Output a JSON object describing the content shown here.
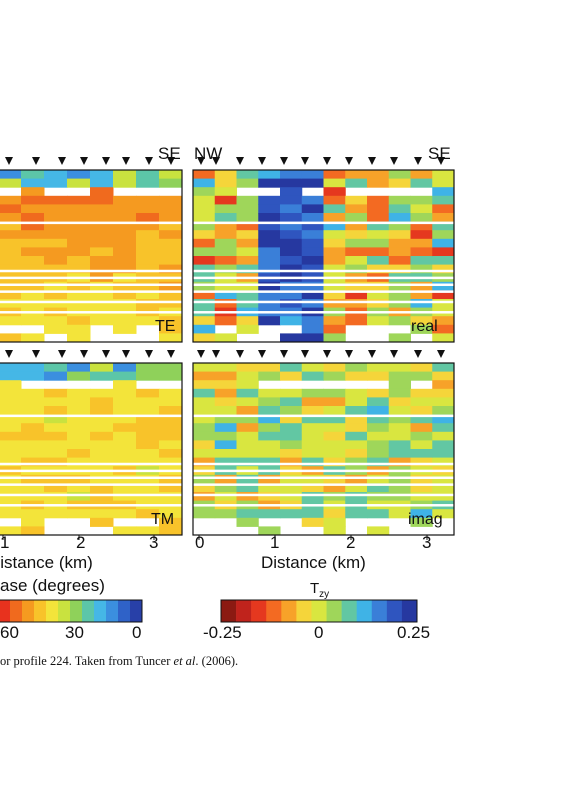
{
  "panels": [
    {
      "id": "TE",
      "label": "TE",
      "top_left": "",
      "top_right": "SE",
      "cmap": "phase",
      "seed": 11
    },
    {
      "id": "real",
      "label": "real",
      "top_left": "NW",
      "top_right": "SE",
      "cmap": "tzy",
      "seed": 23
    },
    {
      "id": "TM",
      "label": "TM",
      "cmap": "phase",
      "seed": 37
    },
    {
      "id": "imag",
      "label": "imag",
      "cmap": "tzy",
      "seed": 53
    }
  ],
  "x_axis": {
    "left_ticks": [
      "1",
      "2",
      "3"
    ],
    "left_label": "Distance (km)",
    "right_ticks": [
      "0",
      "1",
      "2",
      "3"
    ],
    "right_label": "Distance (km)"
  },
  "colorbars": {
    "phase": {
      "title": "ase (degrees)",
      "ticks": [
        "60",
        "30",
        "0"
      ],
      "colors": [
        "#e8321e",
        "#f06a1e",
        "#f59a20",
        "#f8c32a",
        "#f3e43a",
        "#c9e23f",
        "#8fd15a",
        "#5cc6a8",
        "#45b7e6",
        "#3b8fdf",
        "#2f62c8",
        "#2840a8"
      ]
    },
    "tzy": {
      "title": "T",
      "title_sub": "zy",
      "ticks": [
        "-0.25",
        "0",
        "0.25"
      ],
      "colors": [
        "#8b1a12",
        "#c0231c",
        "#e5381f",
        "#f36a22",
        "#f7a229",
        "#f5d53a",
        "#d9e640",
        "#9fd65a",
        "#62c7a3",
        "#3fb3e6",
        "#3a7fd8",
        "#2f55bf",
        "#2638a0"
      ]
    }
  },
  "caption": {
    "before": "or profile 224. Taken from Tuncer ",
    "italic": "et al",
    "after": ". (2006)."
  }
}
